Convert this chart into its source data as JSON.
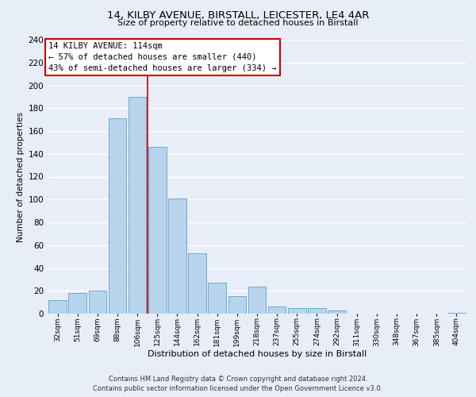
{
  "title": "14, KILBY AVENUE, BIRSTALL, LEICESTER, LE4 4AR",
  "subtitle": "Size of property relative to detached houses in Birstall",
  "xlabel": "Distribution of detached houses by size in Birstall",
  "ylabel": "Number of detached properties",
  "categories": [
    "32sqm",
    "51sqm",
    "69sqm",
    "88sqm",
    "106sqm",
    "125sqm",
    "144sqm",
    "162sqm",
    "181sqm",
    "199sqm",
    "218sqm",
    "237sqm",
    "255sqm",
    "274sqm",
    "292sqm",
    "311sqm",
    "330sqm",
    "348sqm",
    "367sqm",
    "385sqm",
    "404sqm"
  ],
  "values": [
    12,
    18,
    20,
    171,
    190,
    146,
    101,
    53,
    27,
    15,
    24,
    6,
    5,
    5,
    3,
    0,
    0,
    0,
    0,
    0,
    1
  ],
  "bar_color": "#b8d4ec",
  "bar_edge_color": "#6aaad4",
  "property_line_x": 4.5,
  "property_line_color": "#cc0000",
  "annotation_title": "14 KILBY AVENUE: 114sqm",
  "annotation_line1": "← 57% of detached houses are smaller (440)",
  "annotation_line2": "43% of semi-detached houses are larger (334) →",
  "annotation_box_color": "#ffffff",
  "annotation_box_edge": "#cc0000",
  "ylim": [
    0,
    240
  ],
  "yticks": [
    0,
    20,
    40,
    60,
    80,
    100,
    120,
    140,
    160,
    180,
    200,
    220,
    240
  ],
  "footer_line1": "Contains HM Land Registry data © Crown copyright and database right 2024.",
  "footer_line2": "Contains public sector information licensed under the Open Government Licence v3.0.",
  "background_color": "#e8eef8",
  "grid_color": "#ffffff"
}
